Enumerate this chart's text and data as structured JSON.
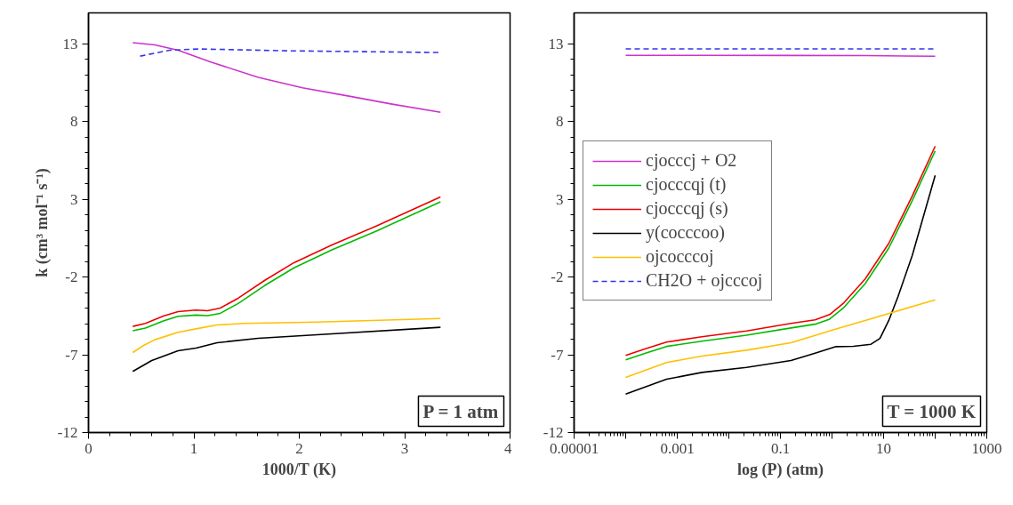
{
  "chart_data": [
    {
      "type": "line",
      "xlabel": "1000/T (K)",
      "ylabel": "k (cm³ mol⁻¹ s⁻¹)",
      "xlim": [
        0,
        4
      ],
      "xticks": [
        0,
        1,
        2,
        3,
        4
      ],
      "ylim": [
        -12,
        15
      ],
      "yticks": [
        -12,
        -7,
        -2,
        3,
        8,
        13
      ],
      "grid": false,
      "legend": false,
      "marker": "none",
      "annotations": [
        "P = 1 atm"
      ],
      "series": [
        {
          "color": "#cc33cc",
          "x": [
            0.42,
            0.63,
            0.85,
            1.16,
            1.61,
            2.03,
            2.46,
            2.88,
            3.34
          ],
          "values": [
            13.08,
            12.94,
            12.6,
            11.84,
            10.85,
            10.18,
            9.66,
            9.13,
            8.61
          ]
        },
        {
          "color": "#00bb00",
          "x": [
            0.42,
            0.54,
            0.71,
            0.85,
            1.02,
            1.13,
            1.25,
            1.42,
            1.67,
            1.95,
            2.31,
            2.74,
            3.34
          ],
          "values": [
            -5.45,
            -5.28,
            -4.82,
            -4.52,
            -4.44,
            -4.48,
            -4.33,
            -3.7,
            -2.55,
            -1.4,
            -0.25,
            0.99,
            2.84
          ]
        },
        {
          "color": "#ee0000",
          "x": [
            0.42,
            0.54,
            0.71,
            0.85,
            1.02,
            1.13,
            1.25,
            1.42,
            1.67,
            1.95,
            2.31,
            2.74,
            3.34
          ],
          "values": [
            -5.17,
            -4.98,
            -4.51,
            -4.22,
            -4.12,
            -4.16,
            -3.99,
            -3.36,
            -2.22,
            -1.07,
            0.07,
            1.31,
            3.16
          ]
        },
        {
          "color": "#000000",
          "x": [
            0.42,
            0.6,
            0.85,
            1.02,
            1.22,
            1.61,
            2.17,
            3.34
          ],
          "values": [
            -8.07,
            -7.37,
            -6.74,
            -6.57,
            -6.22,
            -5.94,
            -5.71,
            -5.23
          ]
        },
        {
          "color": "#ffc000",
          "x": [
            0.42,
            0.52,
            0.63,
            0.85,
            1.02,
            1.22,
            1.47,
            2.17,
            3.34
          ],
          "values": [
            -6.85,
            -6.41,
            -6.03,
            -5.55,
            -5.33,
            -5.08,
            -4.98,
            -4.89,
            -4.66
          ]
        },
        {
          "color": "#3333ee",
          "line_style": "dashed",
          "x": [
            0.49,
            0.77,
            1.05,
            1.89,
            3.34
          ],
          "values": [
            12.22,
            12.6,
            12.68,
            12.56,
            12.45
          ]
        }
      ]
    },
    {
      "type": "line",
      "xlabel": "log (P) (atm)",
      "log": "x",
      "xlim": [
        1e-05,
        1000
      ],
      "xticks": [
        {
          "value": 1e-05,
          "label": "0.00001"
        },
        {
          "value": 0.0001,
          "label": null
        },
        0.001,
        {
          "value": 0.01,
          "label": null
        },
        0.1,
        {
          "value": 1,
          "label": null
        },
        10,
        {
          "value": 100,
          "label": null
        },
        1000
      ],
      "ylim": [
        -12,
        15
      ],
      "yticks": [
        -12,
        -7,
        -2,
        3,
        8,
        13
      ],
      "grid": false,
      "legend": "top left",
      "marker": "none",
      "annotations": [
        "T = 1000 K"
      ],
      "series": [
        {
          "name": "cjocccj + O2",
          "color": "#cc33cc",
          "x": [
            0.0001,
            0.003,
            0.16,
            4.4,
            100
          ],
          "values": [
            12.27,
            12.27,
            12.26,
            12.25,
            12.21
          ]
        },
        {
          "name": "cjocccqj (t)",
          "color": "#00bb00",
          "x": [
            0.0001,
            0.00025,
            0.00062,
            0.003,
            0.022,
            0.16,
            0.47,
            0.9,
            1.7,
            4.4,
            12.6,
            36,
            100
          ],
          "values": [
            -7.32,
            -6.88,
            -6.46,
            -6.12,
            -5.74,
            -5.27,
            -5.03,
            -4.7,
            -3.95,
            -2.42,
            -0.13,
            2.92,
            6.12
          ]
        },
        {
          "name": "cjocccqj (s)",
          "color": "#ee0000",
          "x": [
            0.0001,
            0.00025,
            0.00062,
            0.003,
            0.022,
            0.16,
            0.47,
            0.9,
            1.7,
            4.4,
            12.6,
            36,
            100
          ],
          "values": [
            -7.04,
            -6.6,
            -6.18,
            -5.84,
            -5.46,
            -4.98,
            -4.75,
            -4.41,
            -3.65,
            -2.12,
            0.17,
            3.22,
            6.42
          ]
        },
        {
          "name": "y(cocccoo)",
          "color": "#000000",
          "x": [
            0.0001,
            0.00062,
            0.003,
            0.022,
            0.16,
            0.47,
            1.2,
            2.6,
            5.7,
            8.5,
            12.6,
            19,
            36,
            100
          ],
          "values": [
            -9.52,
            -8.57,
            -8.13,
            -7.81,
            -7.37,
            -6.89,
            -6.47,
            -6.45,
            -6.32,
            -5.94,
            -4.79,
            -3.26,
            -0.6,
            4.55
          ]
        },
        {
          "name": "ojcocccoj",
          "color": "#ffc000",
          "x": [
            0.0001,
            0.00062,
            0.003,
            0.022,
            0.16,
            0.47,
            1.2,
            4.4,
            100
          ],
          "values": [
            -8.45,
            -7.5,
            -7.08,
            -6.7,
            -6.22,
            -5.75,
            -5.33,
            -4.79,
            -3.46
          ]
        },
        {
          "name": "CH2O + ojcccoj",
          "color": "#3333ee",
          "line_style": "dashed",
          "x": [
            0.0001,
            0.003,
            0.16,
            4.4,
            100
          ],
          "values": [
            12.68,
            12.68,
            12.68,
            12.68,
            12.68
          ]
        }
      ]
    }
  ]
}
